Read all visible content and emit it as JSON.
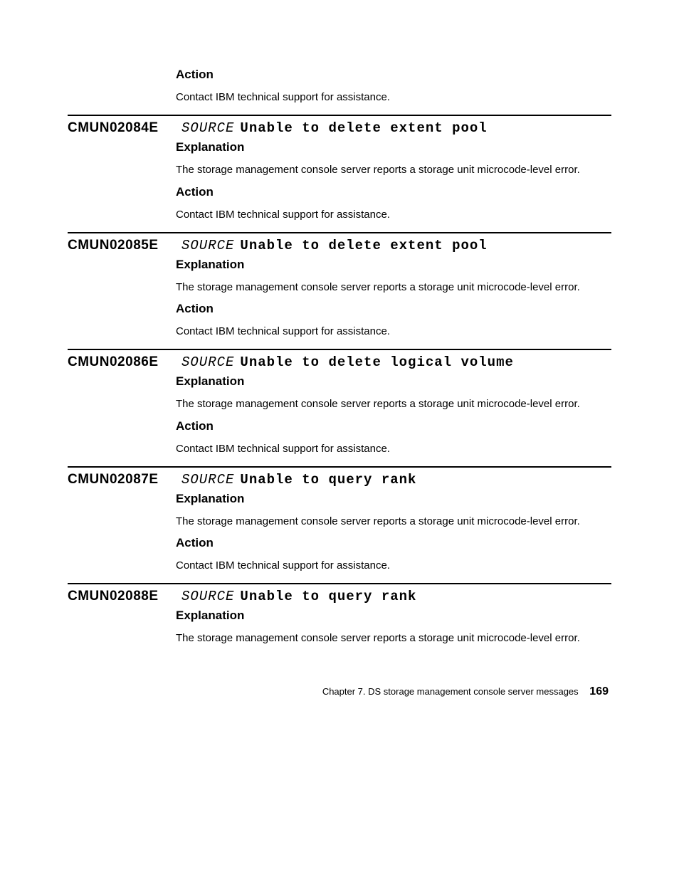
{
  "intro": {
    "action_heading": "Action",
    "action_text": "Contact IBM technical support for assistance."
  },
  "entries": [
    {
      "code": "CMUN02084E",
      "source": "SOURCE",
      "title": "Unable to delete extent pool",
      "explanation_heading": "Explanation",
      "explanation_text": "The storage management console server reports a storage unit microcode-level error.",
      "action_heading": "Action",
      "action_text": "Contact IBM technical support for assistance."
    },
    {
      "code": "CMUN02085E",
      "source": "SOURCE",
      "title": "Unable to delete extent pool",
      "explanation_heading": "Explanation",
      "explanation_text": "The storage management console server reports a storage unit microcode-level error.",
      "action_heading": "Action",
      "action_text": "Contact IBM technical support for assistance."
    },
    {
      "code": "CMUN02086E",
      "source": "SOURCE",
      "title": "Unable to delete logical volume",
      "explanation_heading": "Explanation",
      "explanation_text": "The storage management console server reports a storage unit microcode-level error.",
      "action_heading": "Action",
      "action_text": "Contact IBM technical support for assistance."
    },
    {
      "code": "CMUN02087E",
      "source": "SOURCE",
      "title": "Unable to query rank",
      "explanation_heading": "Explanation",
      "explanation_text": "The storage management console server reports a storage unit microcode-level error.",
      "action_heading": "Action",
      "action_text": "Contact IBM technical support for assistance."
    },
    {
      "code": "CMUN02088E",
      "source": "SOURCE",
      "title": "Unable to query rank",
      "explanation_heading": "Explanation",
      "explanation_text": "The storage management console server reports a storage unit microcode-level error."
    }
  ],
  "footer": {
    "chapter": "Chapter 7. DS storage management console server messages",
    "page": "169"
  }
}
